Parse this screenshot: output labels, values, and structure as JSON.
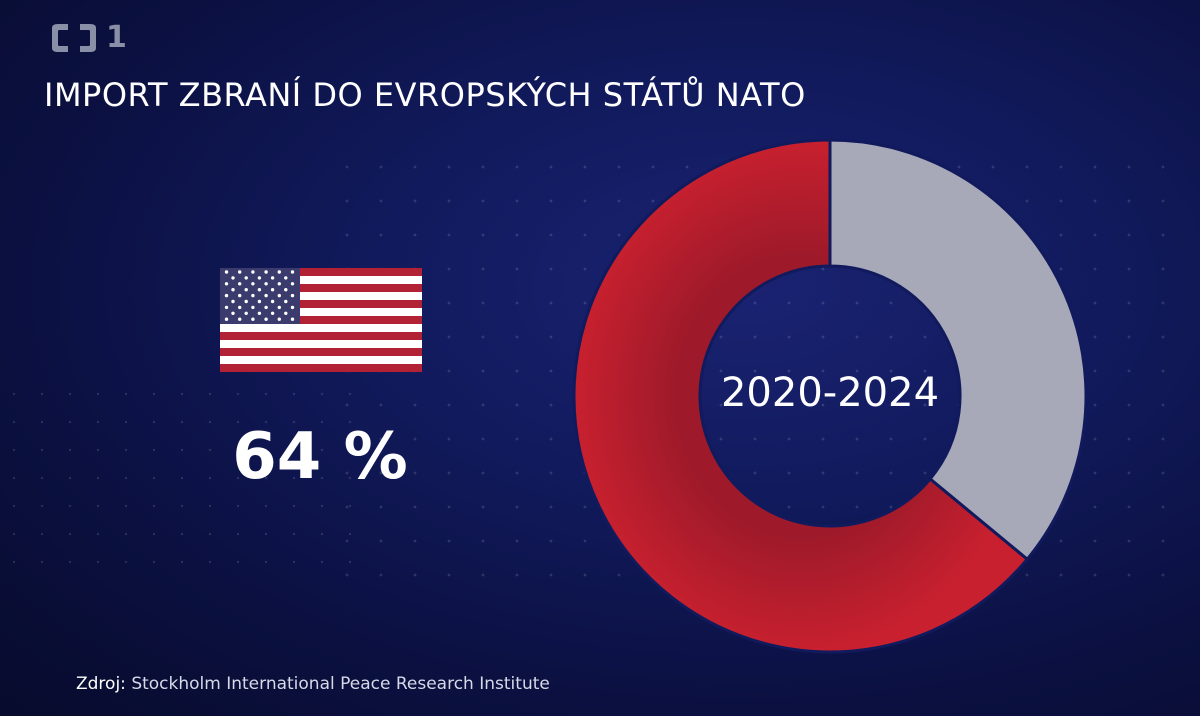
{
  "logo": {
    "text": "1",
    "icon": "ct1-logo-icon"
  },
  "title": "IMPORT ZBRANÍ DO EVROPSKÝCH STÁTŮ NATO",
  "flag": {
    "icon": "us-flag-icon"
  },
  "center_label": "2020-2024",
  "source": {
    "prefix": "Zdroj:",
    "name": "Stockholm International Peace Research Institute"
  },
  "colors": {
    "primary_segment": "#c8202f",
    "remainder_segment": "#a7a8b8",
    "background": "#111a5c"
  },
  "chart_data": {
    "type": "pie",
    "donut": true,
    "slices": [
      {
        "name": "",
        "value": 64,
        "label": "64 %",
        "color": "#c8202f"
      },
      {
        "name": "",
        "value": 36,
        "label": "",
        "color": "#a7a8b8"
      }
    ],
    "title": "IMPORT ZBRANÍ DO EVROPSKÝCH STÁTŮ NATO",
    "center_label": "2020-2024"
  }
}
